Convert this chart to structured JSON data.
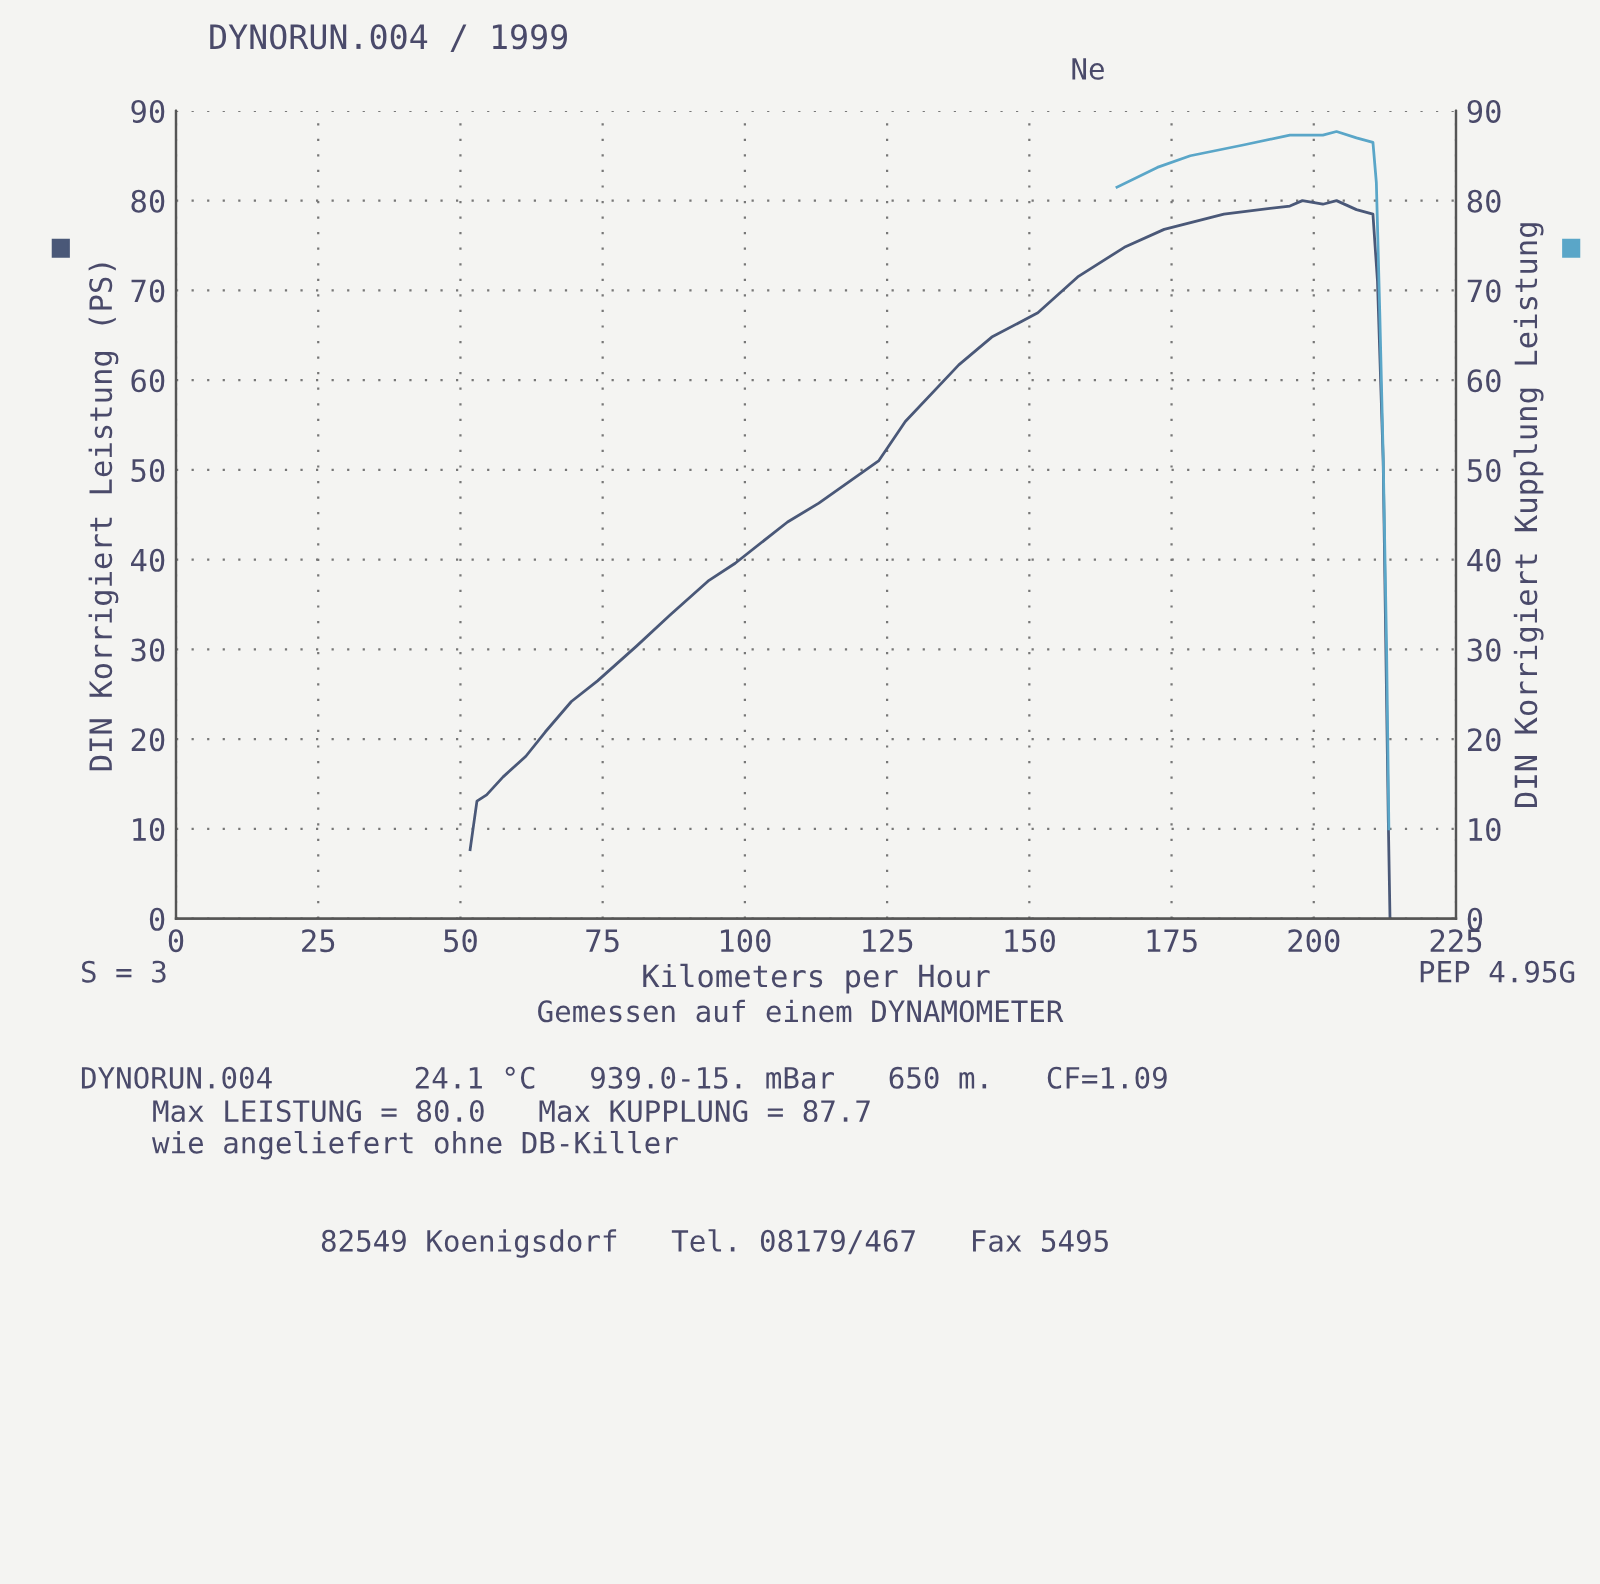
{
  "chart_data": {
    "type": "line",
    "title": "DYNORUN.004 / 1999",
    "xlabel": "Kilometers per Hour",
    "ylabel": "DIN Korrigiert Leistung (PS)",
    "y2label": "DIN Korrigiert Kupplung Leistung",
    "xlim": [
      0,
      225
    ],
    "xticks": [
      0,
      25,
      50,
      75,
      100,
      125,
      150,
      175,
      200,
      225
    ],
    "ylim": [
      0,
      90
    ],
    "yticks": [
      0,
      10,
      20,
      30,
      40,
      50,
      60,
      70,
      80,
      90
    ],
    "y2lim": [
      0,
      90
    ],
    "y2ticks": [
      0,
      10,
      20,
      30,
      40,
      50,
      60,
      70,
      80,
      90
    ],
    "grid": true,
    "line_style": "solid",
    "marker": "none",
    "series": [
      {
        "color": "#4a5878",
        "x": [
          51.7,
          52.9,
          54.6,
          57.5,
          61.5,
          64.9,
          69.5,
          74.1,
          81,
          86.8,
          93.7,
          98.3,
          107.5,
          113,
          123.5,
          128.2,
          137.6,
          143.4,
          151.5,
          158.5,
          166.7,
          173.7,
          184.2,
          195.8,
          198,
          201.6,
          204,
          207.5,
          210.4,
          211.2,
          212.2,
          213.1,
          213.4
        ],
        "values": [
          7.7,
          13.1,
          13.8,
          15.8,
          18.1,
          20.8,
          24.2,
          26.5,
          30.4,
          33.8,
          37.7,
          39.6,
          44.2,
          46.3,
          51,
          55.4,
          61.7,
          64.8,
          67.5,
          71.5,
          74.8,
          76.8,
          78.5,
          79.4,
          80,
          79.6,
          80,
          79,
          78.5,
          71,
          51,
          11,
          0
        ]
      },
      {
        "color": "#5aa6c8",
        "axis": "y2",
        "x": [
          165.4,
          172.5,
          178.3,
          187.6,
          195.8,
          201.6,
          204,
          207.5,
          210.4,
          211,
          211.6,
          212.2,
          212.8,
          213.2
        ],
        "values": [
          81.5,
          83.7,
          85,
          86.2,
          87.3,
          87.3,
          87.7,
          87,
          86.5,
          82,
          67.5,
          51.5,
          30,
          10
        ]
      }
    ],
    "annotations": [
      "Ne",
      "S = 3",
      "PEP 4.95G",
      "Gemessen auf einem DYNAMOMETER",
      "DYNORUN.004        24.1 °C   939.0-15. mBar   650 m.   CF=1.09",
      "Max LEISTUNG = 80.0   Max KUPPLUNG = 87.7",
      "wie angeliefert ohne DB-Killer",
      "82549 Koenigsdorf   Tel. 08179/467   Fax 5495"
    ]
  }
}
